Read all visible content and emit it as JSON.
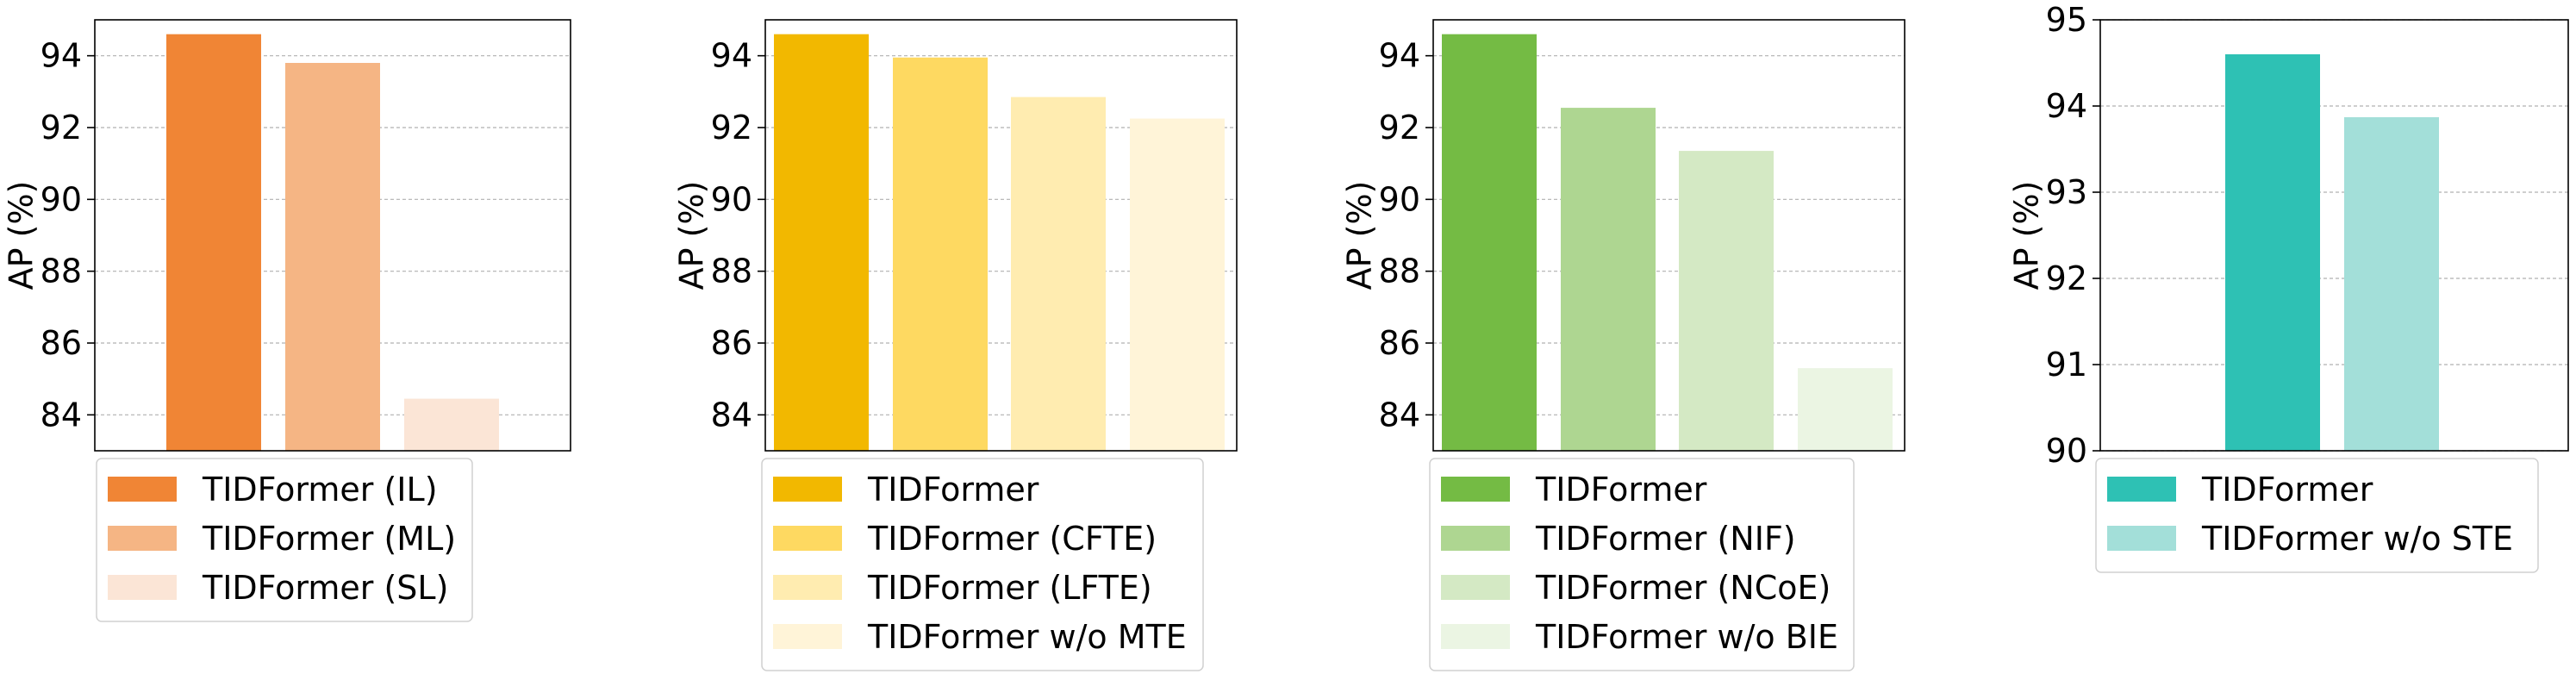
{
  "chart_data": [
    {
      "type": "bar",
      "ylabel": "AP (%)",
      "ylim": [
        83,
        95
      ],
      "yticks": [
        "84",
        "86",
        "88",
        "90",
        "92",
        "94"
      ],
      "grid": true,
      "legend_position": "below",
      "series": [
        {
          "name": "TIDFormer (IL)",
          "value": 94.6,
          "color": "#f08535"
        },
        {
          "name": "TIDFormer (ML)",
          "value": 93.8,
          "color": "#f5b584"
        },
        {
          "name": "TIDFormer (SL)",
          "value": 84.45,
          "color": "#fbe5d6"
        }
      ]
    },
    {
      "type": "bar",
      "ylabel": "AP (%)",
      "ylim": [
        83,
        95
      ],
      "yticks": [
        "84",
        "86",
        "88",
        "90",
        "92",
        "94"
      ],
      "grid": true,
      "legend_position": "below",
      "series": [
        {
          "name": "TIDFormer",
          "value": 94.6,
          "color": "#f2b800"
        },
        {
          "name": "TIDFormer (CFTE)",
          "value": 93.95,
          "color": "#fed961"
        },
        {
          "name": "TIDFormer (LFTE)",
          "value": 92.85,
          "color": "#ffecb0"
        },
        {
          "name": "TIDFormer w/o MTE",
          "value": 92.25,
          "color": "#fff4d8"
        }
      ]
    },
    {
      "type": "bar",
      "ylabel": "AP (%)",
      "ylim": [
        83,
        95
      ],
      "yticks": [
        "84",
        "86",
        "88",
        "90",
        "92",
        "94"
      ],
      "grid": true,
      "legend_position": "below",
      "series": [
        {
          "name": "TIDFormer",
          "value": 94.6,
          "color": "#74bb44"
        },
        {
          "name": "TIDFormer (NIF)",
          "value": 92.55,
          "color": "#aed691"
        },
        {
          "name": "TIDFormer (NCoE)",
          "value": 91.35,
          "color": "#d4e9c4"
        },
        {
          "name": "TIDFormer w/o BIE",
          "value": 85.3,
          "color": "#ebf5e3"
        }
      ]
    },
    {
      "type": "bar",
      "ylabel": "AP (%)",
      "ylim": [
        90,
        95
      ],
      "yticks": [
        "90",
        "91",
        "92",
        "93",
        "94",
        "95"
      ],
      "grid": true,
      "legend_position": "below",
      "series": [
        {
          "name": "TIDFormer",
          "value": 94.6,
          "color": "#2ec1b4"
        },
        {
          "name": "TIDFormer w/o STE",
          "value": 93.87,
          "color": "#a3dfd9"
        }
      ]
    }
  ]
}
